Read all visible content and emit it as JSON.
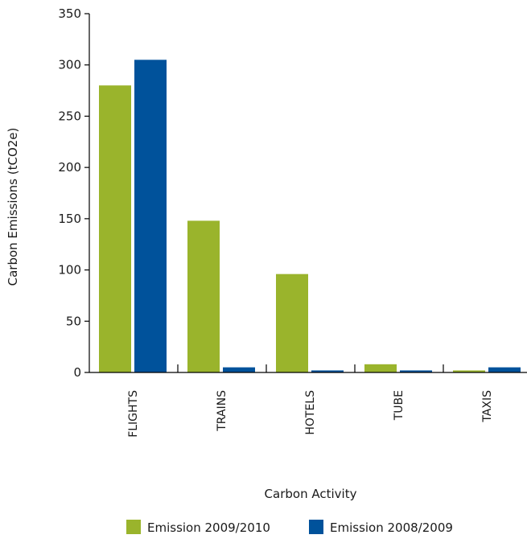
{
  "chart_data": {
    "type": "bar",
    "categories": [
      "FLIGHTS",
      "TRAINS",
      "HOTELS",
      "TUBE",
      "TAXIS"
    ],
    "series": [
      {
        "name": "Emission 2009/2010",
        "color": "#9ab42c",
        "values": [
          280,
          148,
          96,
          8,
          2
        ]
      },
      {
        "name": "Emission 2008/2009",
        "color": "#00529b",
        "values": [
          305,
          5,
          2,
          2,
          5
        ]
      }
    ],
    "ylabel": "Carbon Emissions (tCO2e)",
    "xlabel": "Carbon Activity",
    "ylim": [
      0,
      350
    ],
    "yticks": [
      0,
      50,
      100,
      150,
      200,
      250,
      300,
      350
    ],
    "grid": false,
    "legend": "bottom"
  }
}
